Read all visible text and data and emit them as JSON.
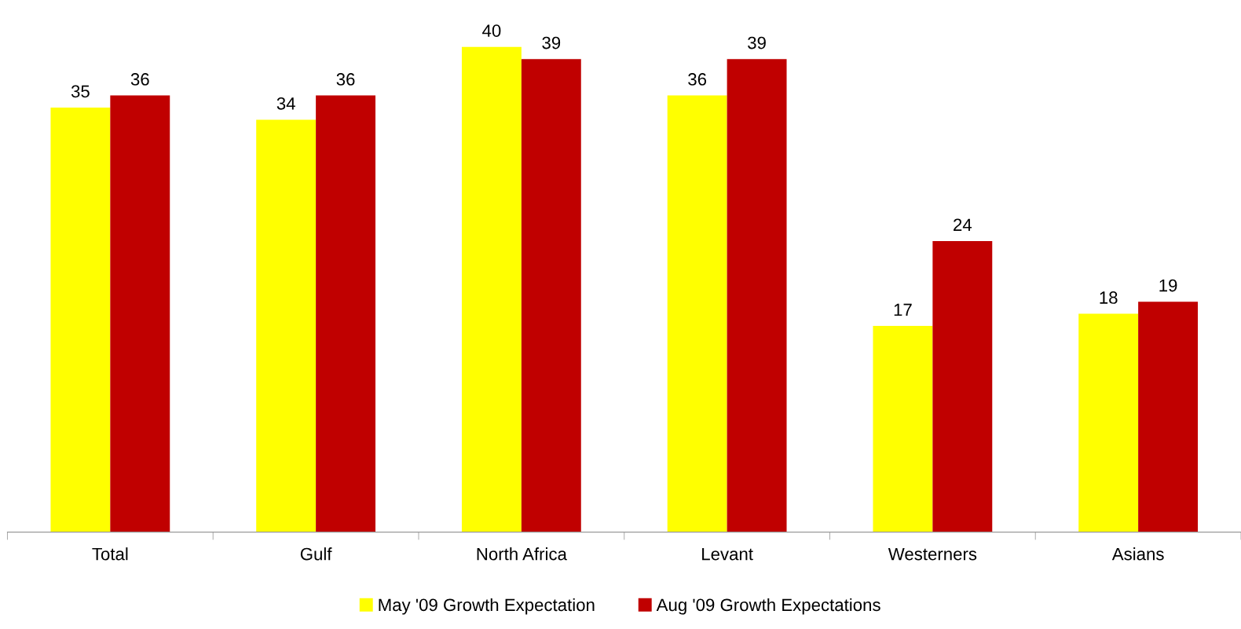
{
  "chart_data": {
    "type": "bar",
    "categories": [
      "Total",
      "Gulf",
      "North Africa",
      "Levant",
      "Westerners",
      "Asians"
    ],
    "series": [
      {
        "name": "May '09 Growth Expectation",
        "color": "#ffff00",
        "values": [
          35,
          34,
          40,
          36,
          17,
          18
        ]
      },
      {
        "name": "Aug '09 Growth Expectations",
        "color": "#c00000",
        "values": [
          36,
          36,
          39,
          39,
          24,
          19
        ]
      }
    ],
    "data_labels": true,
    "legend": "bottom",
    "grid": false
  }
}
